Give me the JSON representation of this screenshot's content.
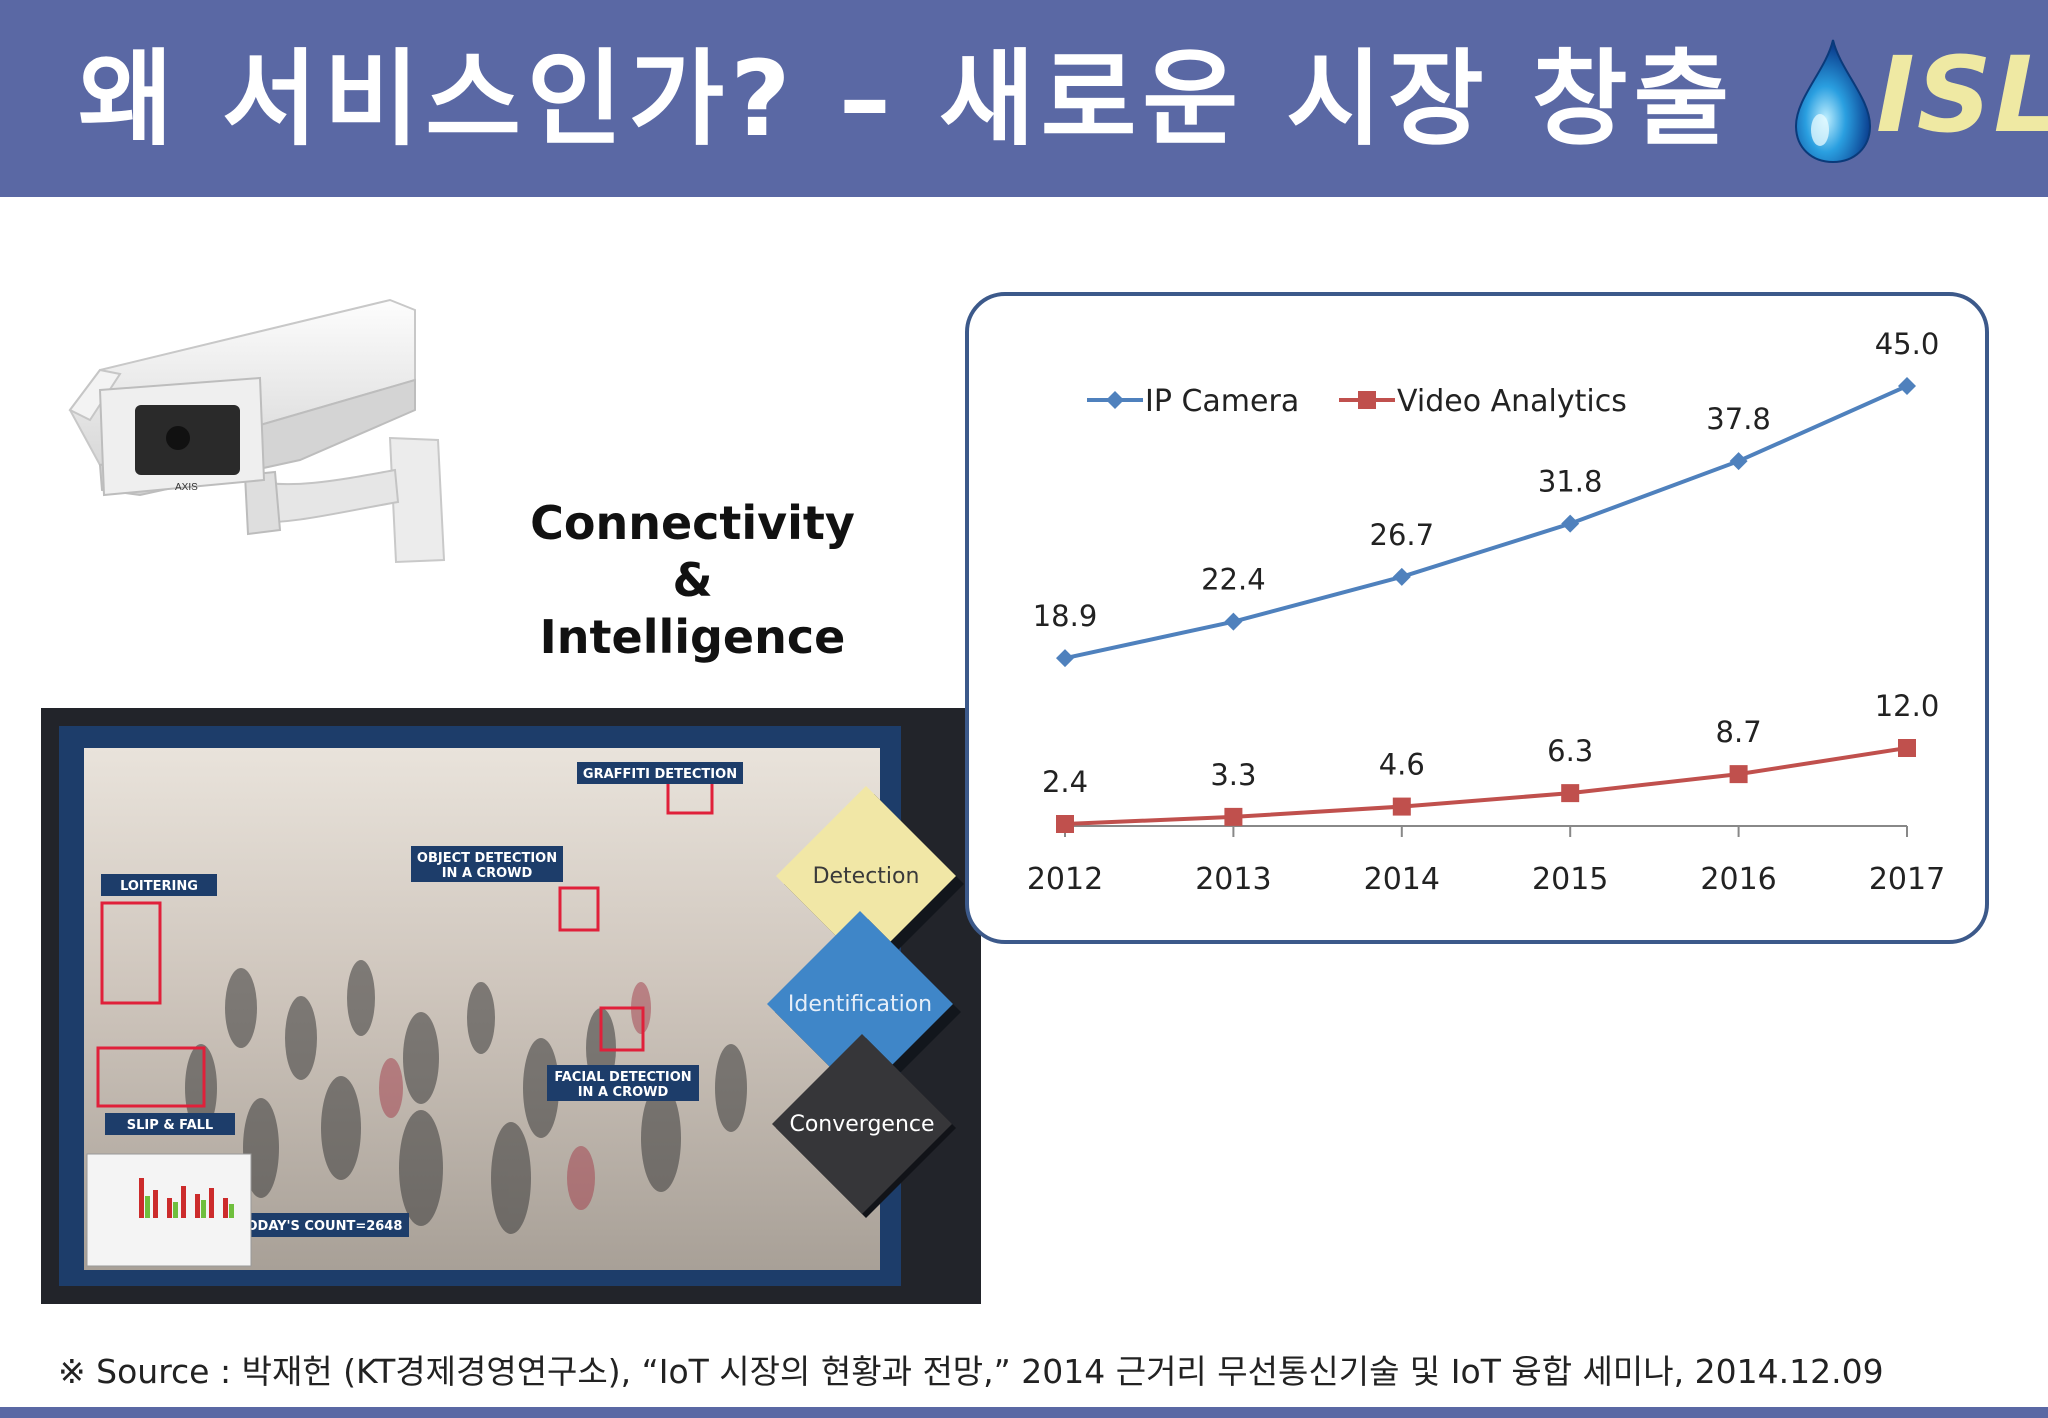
{
  "header": {
    "title": "왜 서비스인가? – 새로운 시장 창출",
    "logo_text": "ISL"
  },
  "left": {
    "tagline": [
      "Connectivity",
      "&",
      "Intelligence"
    ],
    "analytics_labels": {
      "graffiti": "GRAFFITI DETECTION",
      "object_1": "OBJECT DETECTION",
      "object_2": "IN A CROWD",
      "loitering": "LOITERING",
      "facial_1": "FACIAL DETECTION",
      "facial_2": "IN A CROWD",
      "slip": "SLIP & FALL",
      "count": "TODAY'S COUNT=2648"
    },
    "diamonds": [
      "Detection",
      "Identification",
      "Convergence"
    ]
  },
  "chart_data": {
    "type": "line",
    "categories": [
      "2012",
      "2013",
      "2014",
      "2015",
      "2016",
      "2017"
    ],
    "series": [
      {
        "name": "IP Camera",
        "color": "#4f81bd",
        "marker": "diamond",
        "values": [
          18.9,
          22.4,
          26.7,
          31.8,
          37.8,
          45.0
        ],
        "labels": [
          "18.9",
          "22.4",
          "26.7",
          "31.8",
          "37.8",
          "45.0"
        ]
      },
      {
        "name": "Video Analytics",
        "color": "#c0504d",
        "marker": "square",
        "values": [
          2.4,
          3.3,
          4.6,
          6.3,
          8.7,
          12.0
        ],
        "labels": [
          "2.4",
          "3.3",
          "4.6",
          "6.3",
          "8.7",
          "12.0"
        ]
      }
    ],
    "ylim": [
      0,
      50
    ],
    "legend": "top-left",
    "grid": false
  },
  "source": "※ Source : 박재헌 (KT경제경영연구소), “IoT 시장의 현황과 전망,” 2014 근거리 무선통신기술 및 IoT 융합 세미나, 2014.12.09"
}
